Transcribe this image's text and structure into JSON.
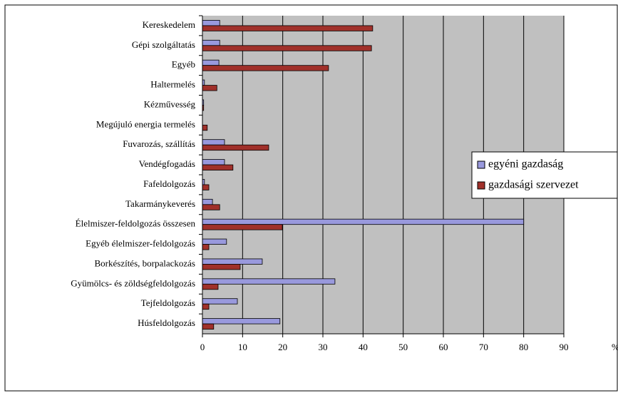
{
  "chart_data": {
    "type": "bar",
    "orientation": "horizontal",
    "categories": [
      "Kereskedelem",
      "Gépi szolgáltatás",
      "Egyéb",
      "Haltermelés",
      "Kézművesség",
      "Megújuló energia termelés",
      "Fuvarozás, szállítás",
      "Vendégfogadás",
      "Fafeldolgozás",
      "Takarmánykeverés",
      "Élelmiszer-feldolgozás összesen",
      "Egyéb élelmiszer-feldolgozás",
      "Borkészítés, borpalackozás",
      "Gyümölcs- és zöldségfeldolgozás",
      "Tejfeldolgozás",
      "Húsfeldolgozás"
    ],
    "series": [
      {
        "name": "egyéni gazdaság",
        "color": "#9999dd",
        "values": [
          4.3,
          4.3,
          4.1,
          0.5,
          0.3,
          0,
          5.5,
          5.5,
          0.5,
          2.5,
          80,
          6.0,
          14.9,
          33.0,
          8.7,
          19.3
        ]
      },
      {
        "name": "gazdasági szervezet",
        "color": "#a0302a",
        "values": [
          42.4,
          42.1,
          31.4,
          3.6,
          0.3,
          1.2,
          16.5,
          7.6,
          1.6,
          4.3,
          19.9,
          1.6,
          9.4,
          3.9,
          1.6,
          2.8
        ]
      }
    ],
    "x_label": "%",
    "xlim": [
      0,
      90
    ],
    "xticks": [
      0,
      10,
      20,
      30,
      40,
      50,
      60,
      70,
      80,
      90
    ],
    "grid": true,
    "legend": "right",
    "background": "#c0c0c0"
  }
}
